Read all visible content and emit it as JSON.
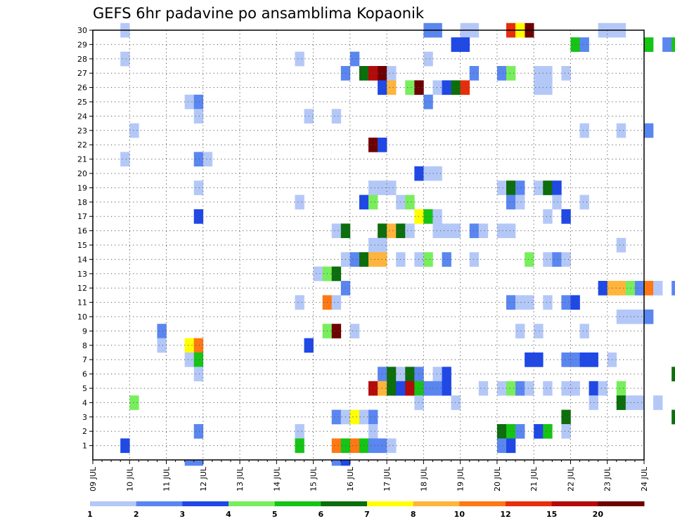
{
  "chart_data": {
    "type": "heatmap",
    "title": "GEFS 6hr padavine po ansamblima Kopaonik",
    "xlabel": "",
    "ylabel": "",
    "x_tick_labels": [
      "09 JUL",
      "10 JUL",
      "11 JUL",
      "12 JUL",
      "13 JUL",
      "14 JUL",
      "15 JUL",
      "16 JUL",
      "17 JUL",
      "18 JUL",
      "19 JUL",
      "20 JUL",
      "21 JUL",
      "22 JUL",
      "23 JUL",
      "24 JUL"
    ],
    "xlim_days": [
      0,
      15
    ],
    "y_tick_labels": [
      "1",
      "2",
      "3",
      "4",
      "5",
      "6",
      "7",
      "8",
      "9",
      "10",
      "11",
      "12",
      "13",
      "14",
      "15",
      "16",
      "17",
      "18",
      "19",
      "20",
      "21",
      "22",
      "23",
      "24",
      "25",
      "26",
      "27",
      "28",
      "29",
      "30"
    ],
    "ylim": [
      0,
      30
    ],
    "grid": true,
    "legend_position": "bottom",
    "colorbar": {
      "labels": [
        "1",
        "2",
        "3",
        "4",
        "5",
        "6",
        "7",
        "8",
        "10",
        "12",
        "15",
        "20"
      ],
      "colors": [
        "#b4c8f8",
        "#5a86f0",
        "#1f48e6",
        "#78ee5c",
        "#16c416",
        "#0c6e0c",
        "#ffff00",
        "#ffb43c",
        "#ff7814",
        "#e82d0a",
        "#b40a0a",
        "#6e0000"
      ]
    },
    "cells": [
      [
        9.75,
        30,
        0
      ],
      [
        18.0,
        30,
        1
      ],
      [
        18.25,
        30,
        1
      ],
      [
        19.0,
        30,
        0
      ],
      [
        19.25,
        30,
        0
      ],
      [
        20.75,
        30,
        11
      ],
      [
        20.25,
        30,
        9
      ],
      [
        20.5,
        30,
        6
      ],
      [
        22.75,
        30,
        0
      ],
      [
        23.0,
        30,
        0
      ],
      [
        23.25,
        30,
        0
      ],
      [
        18.75,
        29,
        2
      ],
      [
        19.0,
        29,
        2
      ],
      [
        22.0,
        29,
        4
      ],
      [
        22.25,
        29,
        1
      ],
      [
        24.0,
        29,
        4
      ],
      [
        24.5,
        29,
        1
      ],
      [
        24.75,
        29,
        4
      ],
      [
        9.75,
        28,
        0
      ],
      [
        14.5,
        28,
        0
      ],
      [
        16.0,
        28,
        1
      ],
      [
        18.0,
        28,
        0
      ],
      [
        15.75,
        27,
        1
      ],
      [
        16.25,
        27,
        5
      ],
      [
        16.5,
        27,
        10
      ],
      [
        16.75,
        27,
        11
      ],
      [
        17.0,
        27,
        0
      ],
      [
        19.25,
        27,
        1
      ],
      [
        20.0,
        27,
        1
      ],
      [
        20.25,
        27,
        3
      ],
      [
        21.0,
        27,
        0
      ],
      [
        21.25,
        27,
        0
      ],
      [
        21.75,
        27,
        0
      ],
      [
        16.75,
        26,
        2
      ],
      [
        17.0,
        26,
        7
      ],
      [
        17.5,
        26,
        3
      ],
      [
        17.75,
        26,
        11
      ],
      [
        18.25,
        26,
        0
      ],
      [
        18.5,
        26,
        2
      ],
      [
        18.75,
        26,
        5
      ],
      [
        19.0,
        26,
        9
      ],
      [
        21.0,
        26,
        0
      ],
      [
        21.25,
        26,
        0
      ],
      [
        11.5,
        25,
        0
      ],
      [
        11.75,
        25,
        1
      ],
      [
        18.0,
        25,
        1
      ],
      [
        11.75,
        24,
        0
      ],
      [
        14.75,
        24,
        0
      ],
      [
        15.5,
        24,
        0
      ],
      [
        10.0,
        23,
        0
      ],
      [
        22.25,
        23,
        0
      ],
      [
        23.25,
        23,
        0
      ],
      [
        24.0,
        23,
        1
      ],
      [
        16.5,
        22,
        11
      ],
      [
        16.75,
        22,
        2
      ],
      [
        9.75,
        21,
        0
      ],
      [
        11.75,
        21,
        1
      ],
      [
        12.0,
        21,
        0
      ],
      [
        17.75,
        20,
        2
      ],
      [
        18.0,
        20,
        0
      ],
      [
        18.25,
        20,
        0
      ],
      [
        11.75,
        19,
        0
      ],
      [
        16.5,
        19,
        0
      ],
      [
        16.75,
        19,
        0
      ],
      [
        17.0,
        19,
        0
      ],
      [
        20.0,
        19,
        0
      ],
      [
        20.25,
        19,
        5
      ],
      [
        20.5,
        19,
        1
      ],
      [
        21.0,
        19,
        0
      ],
      [
        21.25,
        19,
        5
      ],
      [
        21.5,
        19,
        2
      ],
      [
        14.5,
        18,
        0
      ],
      [
        16.25,
        18,
        2
      ],
      [
        16.5,
        18,
        3
      ],
      [
        17.25,
        18,
        0
      ],
      [
        17.5,
        18,
        3
      ],
      [
        20.25,
        18,
        1
      ],
      [
        20.5,
        18,
        0
      ],
      [
        21.5,
        18,
        0
      ],
      [
        22.25,
        18,
        0
      ],
      [
        11.75,
        17,
        2
      ],
      [
        17.75,
        17,
        6
      ],
      [
        18.0,
        17,
        4
      ],
      [
        18.25,
        17,
        0
      ],
      [
        21.25,
        17,
        0
      ],
      [
        21.75,
        17,
        2
      ],
      [
        15.5,
        16,
        0
      ],
      [
        15.75,
        16,
        5
      ],
      [
        16.75,
        16,
        5
      ],
      [
        17.0,
        16,
        7
      ],
      [
        17.25,
        16,
        5
      ],
      [
        17.5,
        16,
        0
      ],
      [
        18.25,
        16,
        0
      ],
      [
        18.5,
        16,
        0
      ],
      [
        18.75,
        16,
        0
      ],
      [
        19.25,
        16,
        1
      ],
      [
        19.5,
        16,
        0
      ],
      [
        20.0,
        16,
        0
      ],
      [
        20.25,
        16,
        0
      ],
      [
        16.5,
        15,
        0
      ],
      [
        16.75,
        15,
        0
      ],
      [
        23.25,
        15,
        0
      ],
      [
        15.75,
        14,
        0
      ],
      [
        16.0,
        14,
        1
      ],
      [
        16.25,
        14,
        5
      ],
      [
        16.5,
        14,
        7
      ],
      [
        16.75,
        14,
        7
      ],
      [
        17.25,
        14,
        0
      ],
      [
        17.75,
        14,
        0
      ],
      [
        18.0,
        14,
        3
      ],
      [
        18.5,
        14,
        1
      ],
      [
        19.25,
        14,
        0
      ],
      [
        20.75,
        14,
        3
      ],
      [
        21.25,
        14,
        0
      ],
      [
        21.5,
        14,
        1
      ],
      [
        21.75,
        14,
        0
      ],
      [
        15.0,
        13,
        0
      ],
      [
        15.25,
        13,
        3
      ],
      [
        15.5,
        13,
        5
      ],
      [
        15.75,
        12,
        1
      ],
      [
        22.75,
        12,
        2
      ],
      [
        23.0,
        12,
        7
      ],
      [
        23.25,
        12,
        7
      ],
      [
        23.5,
        12,
        3
      ],
      [
        23.75,
        12,
        1
      ],
      [
        24.0,
        12,
        8
      ],
      [
        24.25,
        12,
        0
      ],
      [
        24.75,
        12,
        1
      ],
      [
        14.5,
        11,
        0
      ],
      [
        15.25,
        11,
        8
      ],
      [
        15.5,
        11,
        0
      ],
      [
        20.25,
        11,
        1
      ],
      [
        20.5,
        11,
        0
      ],
      [
        20.75,
        11,
        0
      ],
      [
        21.25,
        11,
        0
      ],
      [
        21.75,
        11,
        1
      ],
      [
        22.0,
        11,
        2
      ],
      [
        23.25,
        10,
        0
      ],
      [
        23.5,
        10,
        0
      ],
      [
        23.75,
        10,
        0
      ],
      [
        24.0,
        10,
        1
      ],
      [
        15.25,
        9,
        3
      ],
      [
        15.5,
        9,
        11
      ],
      [
        16.0,
        9,
        0
      ],
      [
        20.5,
        9,
        0
      ],
      [
        21.0,
        9,
        0
      ],
      [
        22.25,
        9,
        0
      ],
      [
        10.75,
        9,
        1
      ],
      [
        10.75,
        8,
        0
      ],
      [
        11.5,
        8,
        6
      ],
      [
        11.75,
        8,
        8
      ],
      [
        14.75,
        8,
        2
      ],
      [
        11.5,
        7,
        0
      ],
      [
        11.75,
        7,
        4
      ],
      [
        20.75,
        7,
        2
      ],
      [
        21.0,
        7,
        2
      ],
      [
        21.75,
        7,
        1
      ],
      [
        22.0,
        7,
        1
      ],
      [
        22.25,
        7,
        2
      ],
      [
        22.5,
        7,
        2
      ],
      [
        23.0,
        7,
        0
      ],
      [
        11.75,
        6,
        0
      ],
      [
        16.75,
        6,
        1
      ],
      [
        17.0,
        6,
        5
      ],
      [
        17.25,
        6,
        0
      ],
      [
        17.5,
        6,
        5
      ],
      [
        17.75,
        6,
        1
      ],
      [
        18.25,
        6,
        0
      ],
      [
        18.5,
        6,
        2
      ],
      [
        24.75,
        6,
        5
      ],
      [
        25.0,
        6,
        8
      ],
      [
        16.5,
        5,
        10
      ],
      [
        16.75,
        5,
        7
      ],
      [
        17.0,
        5,
        5
      ],
      [
        17.25,
        5,
        2
      ],
      [
        17.5,
        5,
        10
      ],
      [
        17.75,
        5,
        4
      ],
      [
        18.0,
        5,
        1
      ],
      [
        18.25,
        5,
        1
      ],
      [
        18.5,
        5,
        2
      ],
      [
        19.5,
        5,
        0
      ],
      [
        20.0,
        5,
        0
      ],
      [
        20.25,
        5,
        3
      ],
      [
        20.5,
        5,
        1
      ],
      [
        20.75,
        5,
        0
      ],
      [
        21.25,
        5,
        0
      ],
      [
        21.75,
        5,
        0
      ],
      [
        22.0,
        5,
        0
      ],
      [
        22.5,
        5,
        2
      ],
      [
        22.75,
        5,
        0
      ],
      [
        23.25,
        5,
        3
      ],
      [
        10.0,
        4,
        3
      ],
      [
        17.75,
        4,
        0
      ],
      [
        18.75,
        4,
        0
      ],
      [
        22.5,
        4,
        0
      ],
      [
        23.25,
        4,
        5
      ],
      [
        23.5,
        4,
        0
      ],
      [
        23.75,
        4,
        0
      ],
      [
        24.25,
        4,
        0
      ],
      [
        15.5,
        3,
        1
      ],
      [
        15.75,
        3,
        0
      ],
      [
        16.0,
        3,
        6
      ],
      [
        16.25,
        3,
        0
      ],
      [
        16.5,
        3,
        1
      ],
      [
        21.75,
        3,
        5
      ],
      [
        24.75,
        3,
        5
      ],
      [
        11.75,
        2,
        1
      ],
      [
        14.5,
        2,
        0
      ],
      [
        16.5,
        2,
        0
      ],
      [
        20.0,
        2,
        5
      ],
      [
        20.25,
        2,
        4
      ],
      [
        20.5,
        2,
        1
      ],
      [
        21.0,
        2,
        2
      ],
      [
        21.25,
        2,
        4
      ],
      [
        21.75,
        2,
        0
      ],
      [
        9.75,
        1,
        2
      ],
      [
        14.5,
        1,
        4
      ],
      [
        15.5,
        1,
        8
      ],
      [
        15.75,
        1,
        4
      ],
      [
        16.0,
        1,
        8
      ],
      [
        16.25,
        1,
        4
      ],
      [
        16.5,
        1,
        1
      ],
      [
        16.75,
        1,
        1
      ],
      [
        17.0,
        1,
        0
      ],
      [
        20.0,
        1,
        1
      ],
      [
        20.25,
        1,
        2
      ],
      [
        11.5,
        0,
        1
      ],
      [
        11.75,
        0,
        1
      ],
      [
        15.5,
        0,
        1
      ],
      [
        15.75,
        0,
        2
      ]
    ]
  }
}
